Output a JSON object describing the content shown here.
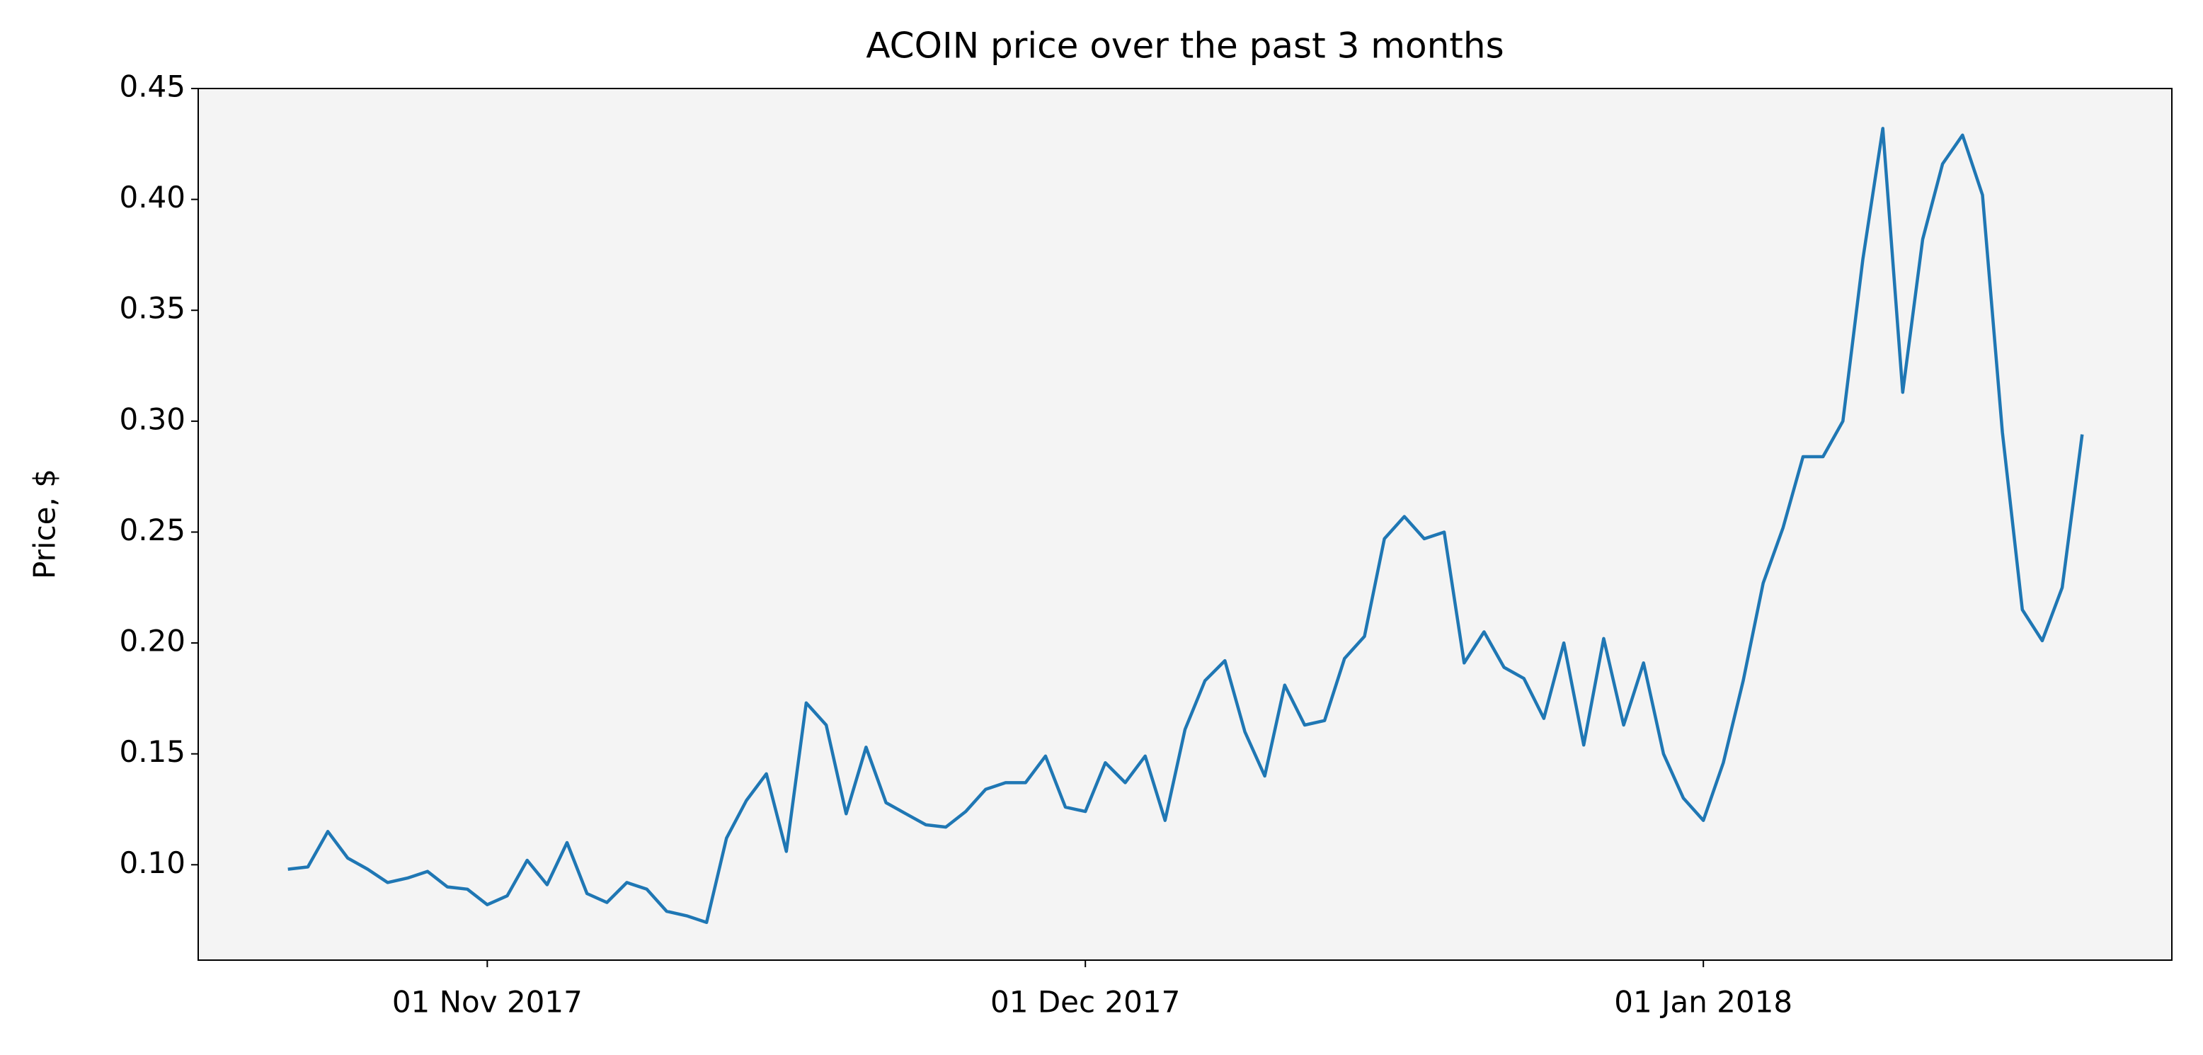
{
  "chart_data": {
    "type": "line",
    "title": "ACOIN price over the past 3 months",
    "y_label": "Price, $",
    "x": [
      "2017-10-22",
      "2017-10-23",
      "2017-10-24",
      "2017-10-25",
      "2017-10-26",
      "2017-10-27",
      "2017-10-28",
      "2017-10-29",
      "2017-10-30",
      "2017-10-31",
      "2017-11-01",
      "2017-11-02",
      "2017-11-03",
      "2017-11-04",
      "2017-11-05",
      "2017-11-06",
      "2017-11-07",
      "2017-11-08",
      "2017-11-09",
      "2017-11-10",
      "2017-11-11",
      "2017-11-12",
      "2017-11-13",
      "2017-11-14",
      "2017-11-15",
      "2017-11-16",
      "2017-11-17",
      "2017-11-18",
      "2017-11-19",
      "2017-11-20",
      "2017-11-21",
      "2017-11-22",
      "2017-11-23",
      "2017-11-24",
      "2017-11-25",
      "2017-11-26",
      "2017-11-27",
      "2017-11-28",
      "2017-11-29",
      "2017-11-30",
      "2017-12-01",
      "2017-12-02",
      "2017-12-03",
      "2017-12-04",
      "2017-12-05",
      "2017-12-06",
      "2017-12-07",
      "2017-12-08",
      "2017-12-09",
      "2017-12-10",
      "2017-12-11",
      "2017-12-12",
      "2017-12-13",
      "2017-12-14",
      "2017-12-15",
      "2017-12-16",
      "2017-12-17",
      "2017-12-18",
      "2017-12-19",
      "2017-12-20",
      "2017-12-21",
      "2017-12-22",
      "2017-12-23",
      "2017-12-24",
      "2017-12-25",
      "2017-12-26",
      "2017-12-27",
      "2017-12-28",
      "2017-12-29",
      "2017-12-30",
      "2017-12-31",
      "2018-01-01",
      "2018-01-02",
      "2018-01-03",
      "2018-01-04",
      "2018-01-05",
      "2018-01-06",
      "2018-01-07",
      "2018-01-08",
      "2018-01-09",
      "2018-01-10",
      "2018-01-11",
      "2018-01-12",
      "2018-01-13",
      "2018-01-14",
      "2018-01-15",
      "2018-01-16",
      "2018-01-17",
      "2018-01-18",
      "2018-01-19",
      "2018-01-20"
    ],
    "values": [
      0.098,
      0.099,
      0.115,
      0.103,
      0.098,
      0.092,
      0.094,
      0.097,
      0.09,
      0.089,
      0.082,
      0.086,
      0.102,
      0.091,
      0.11,
      0.087,
      0.083,
      0.092,
      0.089,
      0.079,
      0.077,
      0.074,
      0.112,
      0.129,
      0.141,
      0.106,
      0.173,
      0.163,
      0.123,
      0.153,
      0.128,
      0.123,
      0.118,
      0.117,
      0.124,
      0.134,
      0.137,
      0.137,
      0.149,
      0.126,
      0.124,
      0.146,
      0.137,
      0.149,
      0.12,
      0.161,
      0.183,
      0.192,
      0.16,
      0.14,
      0.181,
      0.163,
      0.165,
      0.193,
      0.203,
      0.247,
      0.257,
      0.247,
      0.25,
      0.191,
      0.205,
      0.189,
      0.184,
      0.166,
      0.2,
      0.154,
      0.202,
      0.163,
      0.191,
      0.15,
      0.13,
      0.12,
      0.146,
      0.183,
      0.227,
      0.252,
      0.284,
      0.284,
      0.3,
      0.373,
      0.432,
      0.313,
      0.382,
      0.416,
      0.429,
      0.402,
      0.295,
      0.215,
      0.201,
      0.225,
      0.294
    ],
    "color": "#1f77b4",
    "xlim": [
      "2017-10-17T12:00",
      "2018-01-24T12:00"
    ],
    "xticks": [
      {
        "value": "2017-11-01",
        "label": "01 Nov 2017"
      },
      {
        "value": "2017-12-01",
        "label": "01 Dec 2017"
      },
      {
        "value": "2018-01-01",
        "label": "01 Jan 2018"
      }
    ],
    "ylim": [
      0.057,
      0.45
    ],
    "yticks": [
      {
        "value": 0.1,
        "label": "0.10"
      },
      {
        "value": 0.15,
        "label": "0.15"
      },
      {
        "value": 0.2,
        "label": "0.20"
      },
      {
        "value": 0.25,
        "label": "0.25"
      },
      {
        "value": 0.3,
        "label": "0.30"
      },
      {
        "value": 0.35,
        "label": "0.35"
      },
      {
        "value": 0.4,
        "label": "0.40"
      },
      {
        "value": 0.45,
        "label": "0.45"
      }
    ],
    "plot_background": "#f4f4f4"
  }
}
